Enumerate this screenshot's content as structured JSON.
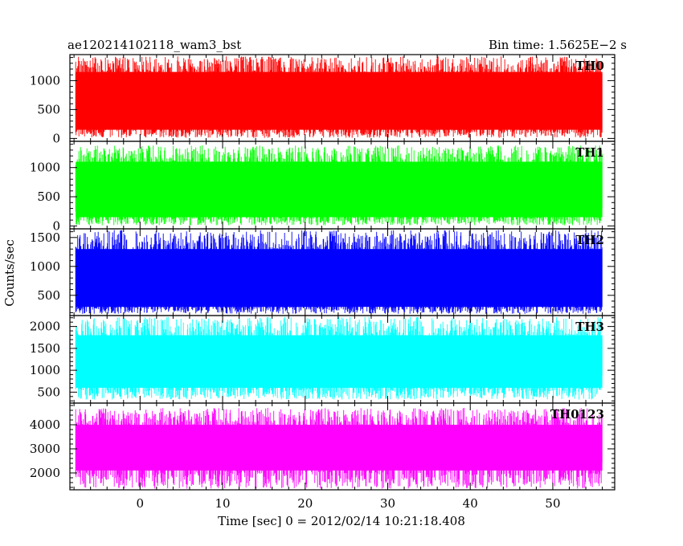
{
  "header": {
    "left_title": "ae120214102118_wam3_bst",
    "right_title": "Bin time: 1.5625E−2 s"
  },
  "chart_data": {
    "type": "line",
    "xlabel": "Time [sec] 0 = 2012/02/14 10:21:18.408",
    "ylabel": "Counts/sec",
    "xlim": [
      -8.5,
      57.5
    ],
    "xticks": [
      0,
      10,
      20,
      30,
      40,
      50
    ],
    "data_xrange": [
      -7.8,
      56.0
    ],
    "grid": false,
    "panels": [
      {
        "label": "TH0",
        "color": "#ff0000",
        "ylim": [
          -50,
          1450
        ],
        "yticks": [
          0,
          500,
          1000
        ],
        "band_low": 150,
        "band_high": 1150,
        "spike_min": 10,
        "spike_max": 1420
      },
      {
        "label": "TH1",
        "color": "#00ff00",
        "ylim": [
          -50,
          1450
        ],
        "yticks": [
          0,
          500,
          1000
        ],
        "band_low": 150,
        "band_high": 1100,
        "spike_min": 10,
        "spike_max": 1380
      },
      {
        "label": "TH2",
        "color": "#0000ff",
        "ylim": [
          150,
          1650
        ],
        "yticks": [
          500,
          1000,
          1500
        ],
        "band_low": 300,
        "band_high": 1300,
        "spike_min": 180,
        "spike_max": 1630
      },
      {
        "label": "TH3",
        "color": "#00ffff",
        "ylim": [
          250,
          2250
        ],
        "yticks": [
          500,
          1000,
          1500,
          2000
        ],
        "band_low": 600,
        "band_high": 1800,
        "spike_min": 330,
        "spike_max": 2220
      },
      {
        "label": "TH0123",
        "color": "#ff00ff",
        "ylim": [
          1300,
          4900
        ],
        "yticks": [
          2000,
          3000,
          4000
        ],
        "band_low": 2100,
        "band_high": 4000,
        "spike_min": 1350,
        "spike_max": 4700
      }
    ]
  }
}
